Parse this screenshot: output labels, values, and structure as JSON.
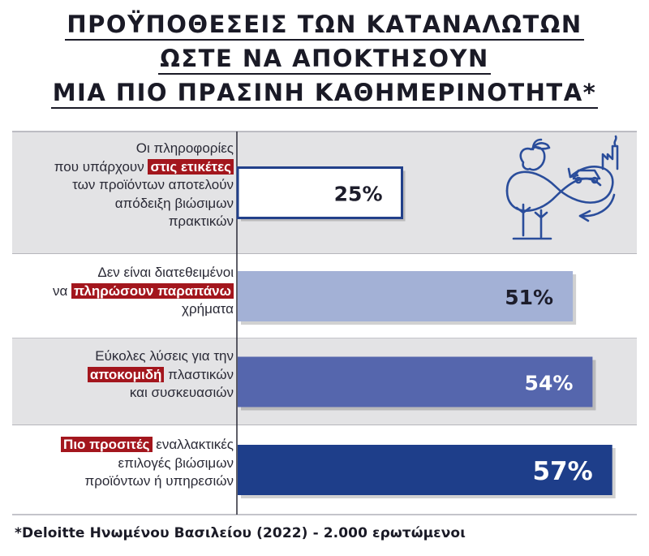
{
  "title_lines": [
    "ΠΡΟΫΠΟΘΕΣΕΙΣ ΤΩΝ ΚΑΤΑΝΑΛΩΤΩΝ",
    "ΩΣΤΕ ΝΑ ΑΠΟΚΤΗΣΟΥΝ",
    "ΜΙΑ ΠΙΟ ΠΡΑΣΙΝΗ ΚΑΘΗΜΕΡΙΝΟΤΗΤΑ*"
  ],
  "rows": [
    {
      "lines": [
        {
          "before": "Οι πληροφορίες",
          "highlight": "",
          "after": ""
        },
        {
          "before": "που υπάρχουν ",
          "highlight": "στις ετικέτες",
          "after": ""
        },
        {
          "before": "των προϊόντων αποτελούν",
          "highlight": "",
          "after": ""
        },
        {
          "before": "απόδειξη βιώσιμων",
          "highlight": "",
          "after": ""
        },
        {
          "before": "πρακτικών",
          "highlight": "",
          "after": ""
        }
      ]
    },
    {
      "lines": [
        {
          "before": "Δεν είναι διατεθειμένοι",
          "highlight": "",
          "after": ""
        },
        {
          "before": "να ",
          "highlight": "πληρώσουν παραπάνω",
          "after": ""
        },
        {
          "before": "χρήματα",
          "highlight": "",
          "after": ""
        }
      ]
    },
    {
      "lines": [
        {
          "before": "Εύκολες λύσεις για την",
          "highlight": "",
          "after": ""
        },
        {
          "before": "",
          "highlight": "αποκομιδή",
          "after": " πλαστικών"
        },
        {
          "before": "και συσκευασιών",
          "highlight": "",
          "after": ""
        }
      ]
    },
    {
      "lines": [
        {
          "before": "",
          "highlight": "Πιο προσιτές",
          "after": " εναλλακτικές"
        },
        {
          "before": "επιλογές βιώσιμων",
          "highlight": "",
          "after": ""
        },
        {
          "before": "προϊόντων ή υπηρεσιών",
          "highlight": "",
          "after": ""
        }
      ]
    }
  ],
  "chart_data": {
    "type": "bar",
    "orientation": "horizontal",
    "categories": [
      "Οι πληροφορίες που υπάρχουν στις ετικέτες των προϊόντων αποτελούν απόδειξη βιώσιμων πρακτικών",
      "Δεν είναι διατεθειμένοι να πληρώσουν παραπάνω χρήματα",
      "Εύκολες λύσεις για την αποκομιδή πλαστικών και συσκευασιών",
      "Πιο προσιτές εναλλακτικές επιλογές βιώσιμων προϊόντων ή υπηρεσιών"
    ],
    "values": [
      25,
      51,
      54,
      57
    ],
    "value_labels": [
      "25%",
      "51%",
      "54%",
      "57%"
    ],
    "xlim": [
      0,
      100
    ],
    "grid": false,
    "colors": {
      "bars": [
        "#ffffff",
        "#a3b1d6",
        "#5566ad",
        "#1e3e8a"
      ],
      "bar_outline": "#22408a",
      "labels": [
        "#1d1d2b",
        "#1d1d2b",
        "#ffffff",
        "#ffffff"
      ],
      "row_backgrounds": [
        "#e3e3e5",
        "#ffffff"
      ],
      "highlight": "#a3161d",
      "icon": "#2a4d9b"
    }
  },
  "icon": "sustainability-cycle-icon",
  "footer": "*Deloitte Ηνωμένου Βασιλείου (2022) - 2.000 ερωτώμενοι"
}
